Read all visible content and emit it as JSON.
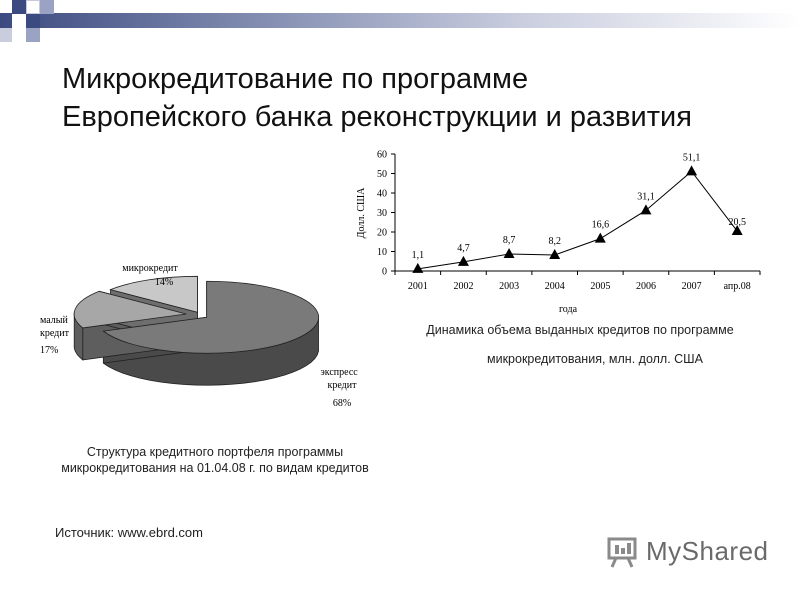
{
  "header": {
    "title_line1": "Микрокредитование по программе",
    "title_line2": "Европейского банка реконструкции и развития"
  },
  "colors": {
    "accent_dark": "#3b4a80",
    "accent_mid": "#9aa3c4",
    "pie_dark": "#7a7a7a",
    "pie_mid": "#a7a7a7",
    "pie_light": "#c8c8c8"
  },
  "chart_data": [
    {
      "type": "pie",
      "categories": [
        "экспресс - кредит",
        "малый кредит",
        "микрокредит"
      ],
      "values": [
        68,
        17,
        14
      ],
      "labels": [
        "68%",
        "17%",
        "14%"
      ],
      "caption": "Структура кредитного портфеля программы микрокредитования на 01.04.08 г. по видам кредитов"
    },
    {
      "type": "line",
      "categories": [
        "2001",
        "2002",
        "2003",
        "2004",
        "2005",
        "2006",
        "2007",
        "апр.08"
      ],
      "values": [
        1.1,
        4.7,
        8.7,
        8.2,
        16.6,
        31.1,
        51.1,
        20.5
      ],
      "data_labels": [
        "1,1",
        "4,7",
        "8,7",
        "8,2",
        "16,6",
        "31,1",
        "51,1",
        "20,5"
      ],
      "xlabel": "года",
      "ylabel": "Долл. США",
      "ylim": [
        0,
        60
      ],
      "yticks": [
        0,
        10,
        20,
        30,
        40,
        50,
        60
      ],
      "caption_line1": "Динамика объема выданных кредитов по программе",
      "caption_line2": "микрокредитования, млн. долл. США"
    }
  ],
  "footer": {
    "source": "Источник: www.ebrd.com",
    "logo_text": "MyShared",
    "logo_icon": "presentation-board-icon"
  }
}
